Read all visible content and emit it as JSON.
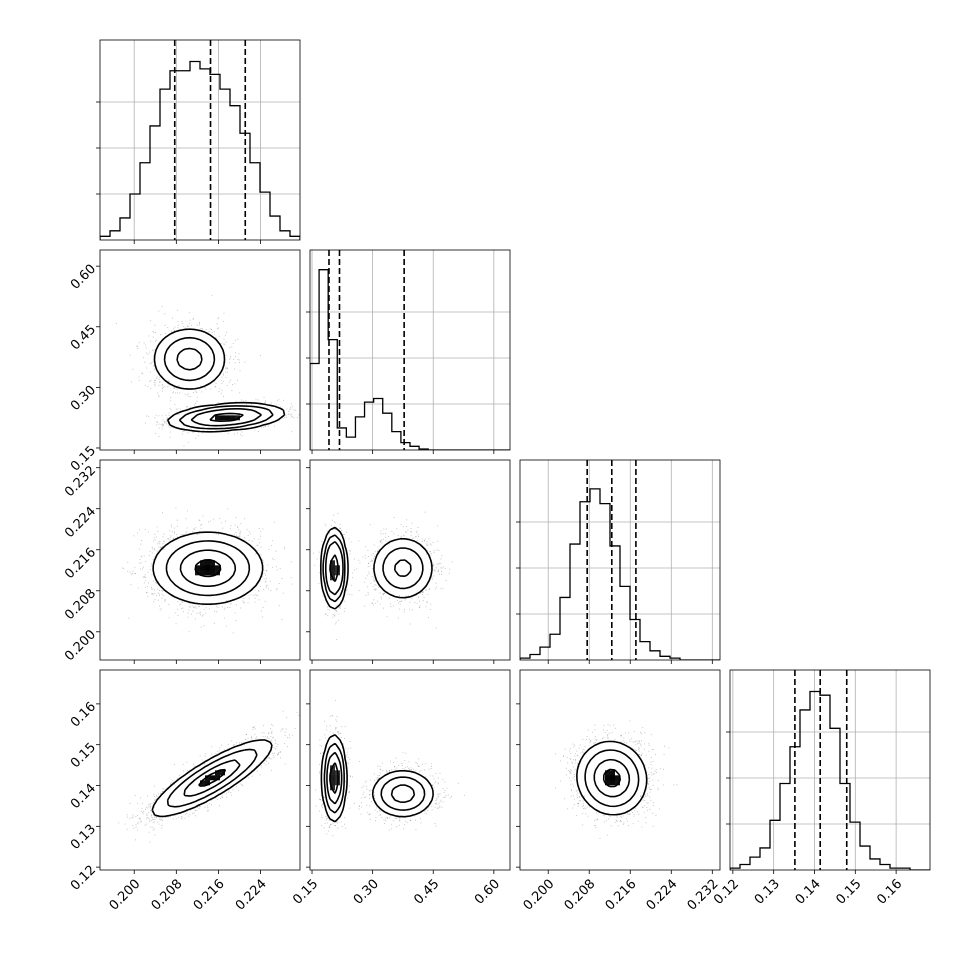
{
  "chart_data": {
    "type": "corner",
    "parameters": 4,
    "axes": [
      {
        "lim": [
          0.1935,
          0.2315
        ],
        "ticks": [
          0.2,
          0.208,
          0.216,
          0.224
        ],
        "tick_labels": [
          "0.200",
          "0.208",
          "0.216",
          "0.224"
        ]
      },
      {
        "lim": [
          0.145,
          0.64
        ],
        "ticks": [
          0.15,
          0.3,
          0.45,
          0.6
        ],
        "tick_labels": [
          "0.15",
          "0.30",
          "0.45",
          "0.60"
        ]
      },
      {
        "lim": [
          0.1945,
          0.2335
        ],
        "ticks": [
          0.2,
          0.208,
          0.216,
          0.224,
          0.232
        ],
        "tick_labels": [
          "0.200",
          "0.208",
          "0.216",
          "0.224",
          "0.232"
        ]
      },
      {
        "lim": [
          0.1193,
          0.1683
        ],
        "ticks": [
          0.12,
          0.13,
          0.14,
          0.15,
          0.16
        ],
        "tick_labels": [
          "0.12",
          "0.13",
          "0.14",
          "0.15",
          "0.16"
        ]
      }
    ],
    "grid": true,
    "histograms": [
      {
        "param": 0,
        "bin_edges_start": 0.1935,
        "bin_width": 0.0019,
        "counts": [
          0.02,
          0.05,
          0.12,
          0.25,
          0.42,
          0.62,
          0.82,
          0.92,
          0.92,
          0.97,
          0.93,
          0.9,
          0.82,
          0.73,
          0.58,
          0.42,
          0.26,
          0.13,
          0.05,
          0.02
        ],
        "quantiles": [
          0.2077,
          0.2145,
          0.2211
        ]
      },
      {
        "param": 1,
        "bin_edges_start": 0.145,
        "bin_width": 0.0225,
        "counts": [
          0.47,
          0.98,
          0.6,
          0.12,
          0.07,
          0.18,
          0.26,
          0.28,
          0.2,
          0.1,
          0.04,
          0.02,
          0.005,
          0.0,
          0.0,
          0.0,
          0.0,
          0.0,
          0.0,
          0.0,
          0.0,
          0.0
        ],
        "quantiles": [
          0.192,
          0.218,
          0.378
        ]
      },
      {
        "param": 2,
        "bin_edges_start": 0.1945,
        "bin_width": 0.00195,
        "counts": [
          0.01,
          0.03,
          0.07,
          0.14,
          0.34,
          0.63,
          0.86,
          0.93,
          0.85,
          0.62,
          0.4,
          0.22,
          0.1,
          0.05,
          0.02,
          0.01,
          0.0,
          0.0,
          0.0,
          0.0
        ],
        "quantiles": [
          0.2076,
          0.2124,
          0.2171
        ]
      },
      {
        "param": 3,
        "bin_edges_start": 0.1193,
        "bin_width": 0.00245,
        "counts": [
          0.01,
          0.03,
          0.07,
          0.12,
          0.27,
          0.47,
          0.67,
          0.87,
          0.97,
          0.95,
          0.77,
          0.47,
          0.26,
          0.13,
          0.06,
          0.03,
          0.01,
          0.01,
          0.0,
          0.0
        ],
        "quantiles": [
          0.1352,
          0.1414,
          0.1479
        ]
      }
    ],
    "pairs": [
      {
        "x": 0,
        "y": 1,
        "modes": [
          {
            "cx": 0.2105,
            "cy": 0.37,
            "sx": 0.0036,
            "sy": 0.04,
            "rho": 0.0,
            "w": 0.5
          },
          {
            "cx": 0.2175,
            "cy": 0.226,
            "sx": 0.0052,
            "sy": 0.016,
            "rho": 0.3,
            "w": 0.5
          }
        ]
      },
      {
        "x": 0,
        "y": 2,
        "modes": [
          {
            "cx": 0.214,
            "cy": 0.2124,
            "sx": 0.0052,
            "sy": 0.0035,
            "rho": 0.0,
            "w": 1.0
          }
        ]
      },
      {
        "x": 0,
        "y": 3,
        "modes": [
          {
            "cx": 0.2148,
            "cy": 0.1418,
            "sx": 0.0057,
            "sy": 0.0047,
            "rho": 0.85,
            "w": 1.0
          }
        ]
      },
      {
        "x": 1,
        "y": 2,
        "modes": [
          {
            "cx": 0.205,
            "cy": 0.2124,
            "sx": 0.014,
            "sy": 0.0035,
            "rho": 0.0,
            "w": 0.5
          },
          {
            "cx": 0.375,
            "cy": 0.2124,
            "sx": 0.04,
            "sy": 0.0032,
            "rho": 0.0,
            "w": 0.5
          }
        ]
      },
      {
        "x": 1,
        "y": 3,
        "modes": [
          {
            "cx": 0.205,
            "cy": 0.1418,
            "sx": 0.014,
            "sy": 0.005,
            "rho": 0.0,
            "w": 0.5
          },
          {
            "cx": 0.375,
            "cy": 0.138,
            "sx": 0.04,
            "sy": 0.003,
            "rho": 0.0,
            "w": 0.5
          }
        ]
      },
      {
        "x": 2,
        "y": 3,
        "modes": [
          {
            "cx": 0.2124,
            "cy": 0.1418,
            "sx": 0.0034,
            "sy": 0.0045,
            "rho": -0.05,
            "w": 1.0
          }
        ]
      }
    ],
    "contour_levels": [
      0.118,
      0.393,
      0.675,
      0.865
    ]
  }
}
